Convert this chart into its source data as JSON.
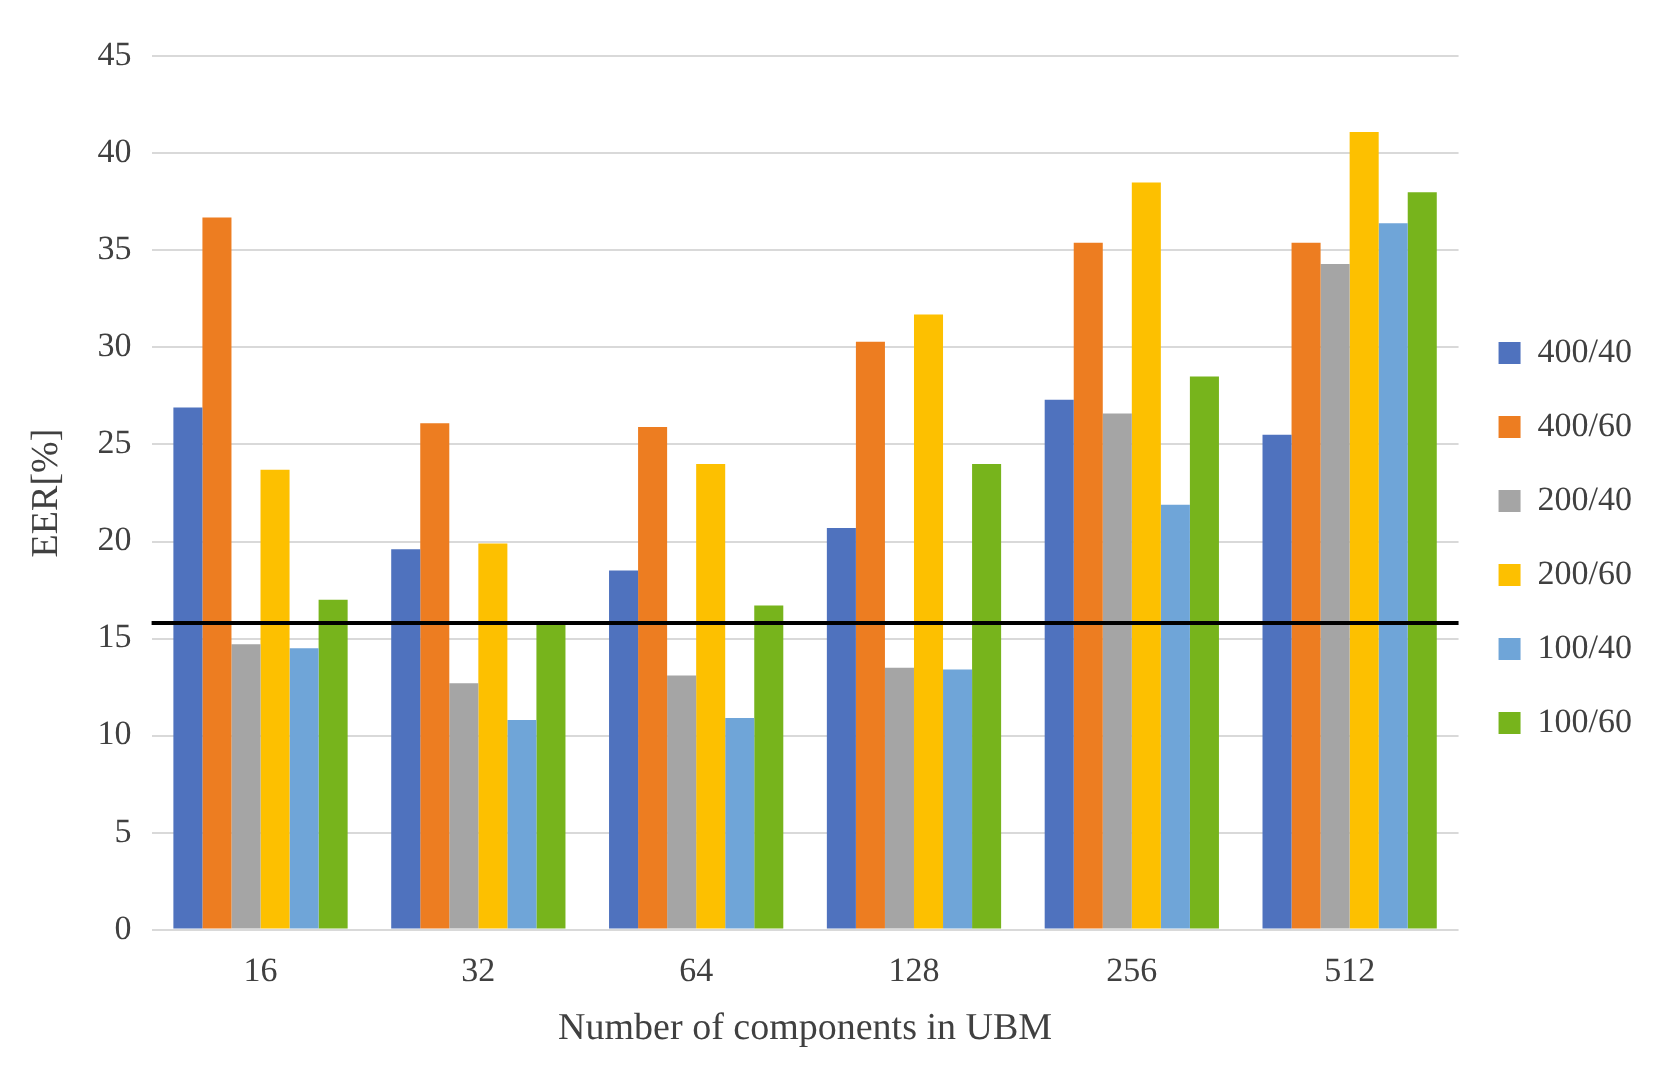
{
  "chart_data": {
    "type": "bar",
    "xlabel": "Number of components in UBM",
    "ylabel": "EER[%]",
    "categories": [
      "16",
      "32",
      "64",
      "128",
      "256",
      "512"
    ],
    "series": [
      {
        "name": "400/40",
        "color": "#4f72be",
        "values": [
          26.9,
          19.6,
          18.5,
          20.7,
          27.3,
          25.5
        ]
      },
      {
        "name": "400/60",
        "color": "#ed7d21",
        "values": [
          36.7,
          26.1,
          25.9,
          30.3,
          35.4,
          35.4
        ]
      },
      {
        "name": "200/40",
        "color": "#a5a5a5",
        "values": [
          14.7,
          12.7,
          13.1,
          13.5,
          26.6,
          34.3
        ]
      },
      {
        "name": "200/60",
        "color": "#fdc000",
        "values": [
          23.7,
          19.9,
          24.0,
          31.7,
          38.5,
          41.1
        ]
      },
      {
        "name": "100/40",
        "color": "#6fa5d8",
        "values": [
          14.5,
          10.8,
          10.9,
          13.4,
          21.9,
          36.4
        ]
      },
      {
        "name": "100/60",
        "color": "#77b41c",
        "values": [
          17.0,
          15.7,
          16.7,
          24.0,
          28.5,
          38.0
        ]
      }
    ],
    "ylim": [
      0,
      45
    ],
    "yticks": [
      0,
      5,
      10,
      15,
      20,
      25,
      30,
      35,
      40,
      45
    ],
    "grid": "y",
    "legend": "right",
    "ref_lines": [
      {
        "axis": "y",
        "value": 15.8,
        "color": "#000000"
      }
    ]
  }
}
